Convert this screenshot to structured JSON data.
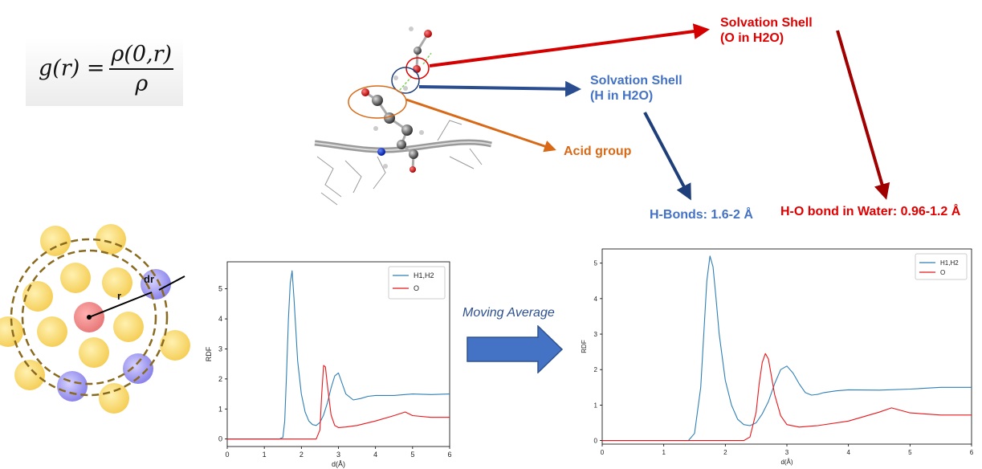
{
  "formula": {
    "lhs": "g(r) =",
    "numerator": "ρ(0,r)",
    "denominator": "ρ"
  },
  "labels": {
    "solvation_o": [
      "Solvation Shell",
      "(O in H2O)"
    ],
    "solvation_h": [
      "Solvation Shell",
      "(H in H2O)"
    ],
    "acid_group": "Acid group",
    "hbonds": "H-Bonds: 1.6-2 Å",
    "ho_bond": "H-O bond in Water: 0.96-1.2 Å",
    "moving_average": "Moving Average"
  },
  "shell_diagram": {
    "r_label": "r",
    "dr_label": "dr"
  },
  "colors": {
    "series_h": "#2f7fb5",
    "series_o": "#e8161a",
    "label_red": "#e00000",
    "label_blue": "#4472c4",
    "label_orange": "#d86a17",
    "arrow_blue": "#1f3f7a",
    "arrow_red": "#a00000"
  },
  "chart_data": [
    {
      "type": "line",
      "xlabel": "d(Å)",
      "ylabel": "RDF",
      "xlim": [
        0,
        6
      ],
      "ylim": [
        -0.25,
        5.9
      ],
      "xticks": [
        "0",
        "1",
        "2",
        "3",
        "4",
        "5",
        "6"
      ],
      "yticks": [
        "0",
        "1",
        "2",
        "3",
        "4",
        "5"
      ],
      "legend": "top-right",
      "series": [
        {
          "name": "H1,H2",
          "x": [
            0,
            1.4,
            1.5,
            1.55,
            1.6,
            1.65,
            1.7,
            1.75,
            1.8,
            1.9,
            2.0,
            2.1,
            2.2,
            2.3,
            2.4,
            2.5,
            2.6,
            2.7,
            2.8,
            2.9,
            3.0,
            3.1,
            3.2,
            3.4,
            3.6,
            3.8,
            4.0,
            4.5,
            5.0,
            5.5,
            6.0
          ],
          "y": [
            0,
            0,
            0.05,
            0.6,
            2.2,
            4.0,
            5.2,
            5.6,
            4.7,
            2.6,
            1.5,
            0.9,
            0.6,
            0.48,
            0.45,
            0.55,
            0.8,
            1.2,
            1.7,
            2.1,
            2.2,
            1.85,
            1.5,
            1.3,
            1.35,
            1.42,
            1.45,
            1.45,
            1.5,
            1.48,
            1.5
          ]
        },
        {
          "name": "O",
          "x": [
            0,
            2.4,
            2.5,
            2.55,
            2.6,
            2.65,
            2.7,
            2.8,
            2.9,
            3.0,
            3.2,
            3.5,
            4.0,
            4.5,
            4.8,
            5.0,
            5.5,
            6.0
          ],
          "y": [
            0,
            0,
            0.3,
            1.5,
            2.45,
            2.4,
            1.8,
            0.8,
            0.45,
            0.38,
            0.4,
            0.45,
            0.6,
            0.78,
            0.9,
            0.78,
            0.72,
            0.72
          ]
        }
      ]
    },
    {
      "type": "line",
      "xlabel": "d(Å)",
      "ylabel": "RDF",
      "xlim": [
        0,
        6
      ],
      "ylim": [
        -0.1,
        5.4
      ],
      "xticks": [
        "0",
        "1",
        "2",
        "3",
        "4",
        "5",
        "6"
      ],
      "yticks": [
        "0",
        "1",
        "2",
        "3",
        "4",
        "5"
      ],
      "legend": "top-right",
      "series": [
        {
          "name": "H1,H2",
          "x": [
            0,
            1.4,
            1.5,
            1.6,
            1.65,
            1.7,
            1.75,
            1.8,
            1.85,
            1.9,
            2.0,
            2.1,
            2.2,
            2.3,
            2.4,
            2.5,
            2.6,
            2.7,
            2.8,
            2.9,
            3.0,
            3.1,
            3.2,
            3.3,
            3.4,
            3.5,
            3.6,
            3.8,
            4.0,
            4.5,
            5.0,
            5.5,
            6.0
          ],
          "y": [
            0,
            0,
            0.2,
            1.5,
            3.0,
            4.5,
            5.2,
            4.9,
            4.0,
            3.0,
            1.7,
            1.0,
            0.6,
            0.45,
            0.42,
            0.5,
            0.75,
            1.1,
            1.6,
            2.0,
            2.1,
            1.9,
            1.6,
            1.35,
            1.28,
            1.3,
            1.35,
            1.4,
            1.43,
            1.42,
            1.45,
            1.5,
            1.5
          ]
        },
        {
          "name": "O",
          "x": [
            0,
            2.3,
            2.4,
            2.5,
            2.55,
            2.6,
            2.65,
            2.7,
            2.8,
            2.9,
            3.0,
            3.2,
            3.5,
            4.0,
            4.5,
            4.7,
            5.0,
            5.5,
            6.0
          ],
          "y": [
            0,
            0,
            0.1,
            0.8,
            1.6,
            2.2,
            2.45,
            2.3,
            1.3,
            0.7,
            0.45,
            0.38,
            0.42,
            0.55,
            0.8,
            0.92,
            0.78,
            0.72,
            0.72
          ]
        }
      ]
    }
  ]
}
